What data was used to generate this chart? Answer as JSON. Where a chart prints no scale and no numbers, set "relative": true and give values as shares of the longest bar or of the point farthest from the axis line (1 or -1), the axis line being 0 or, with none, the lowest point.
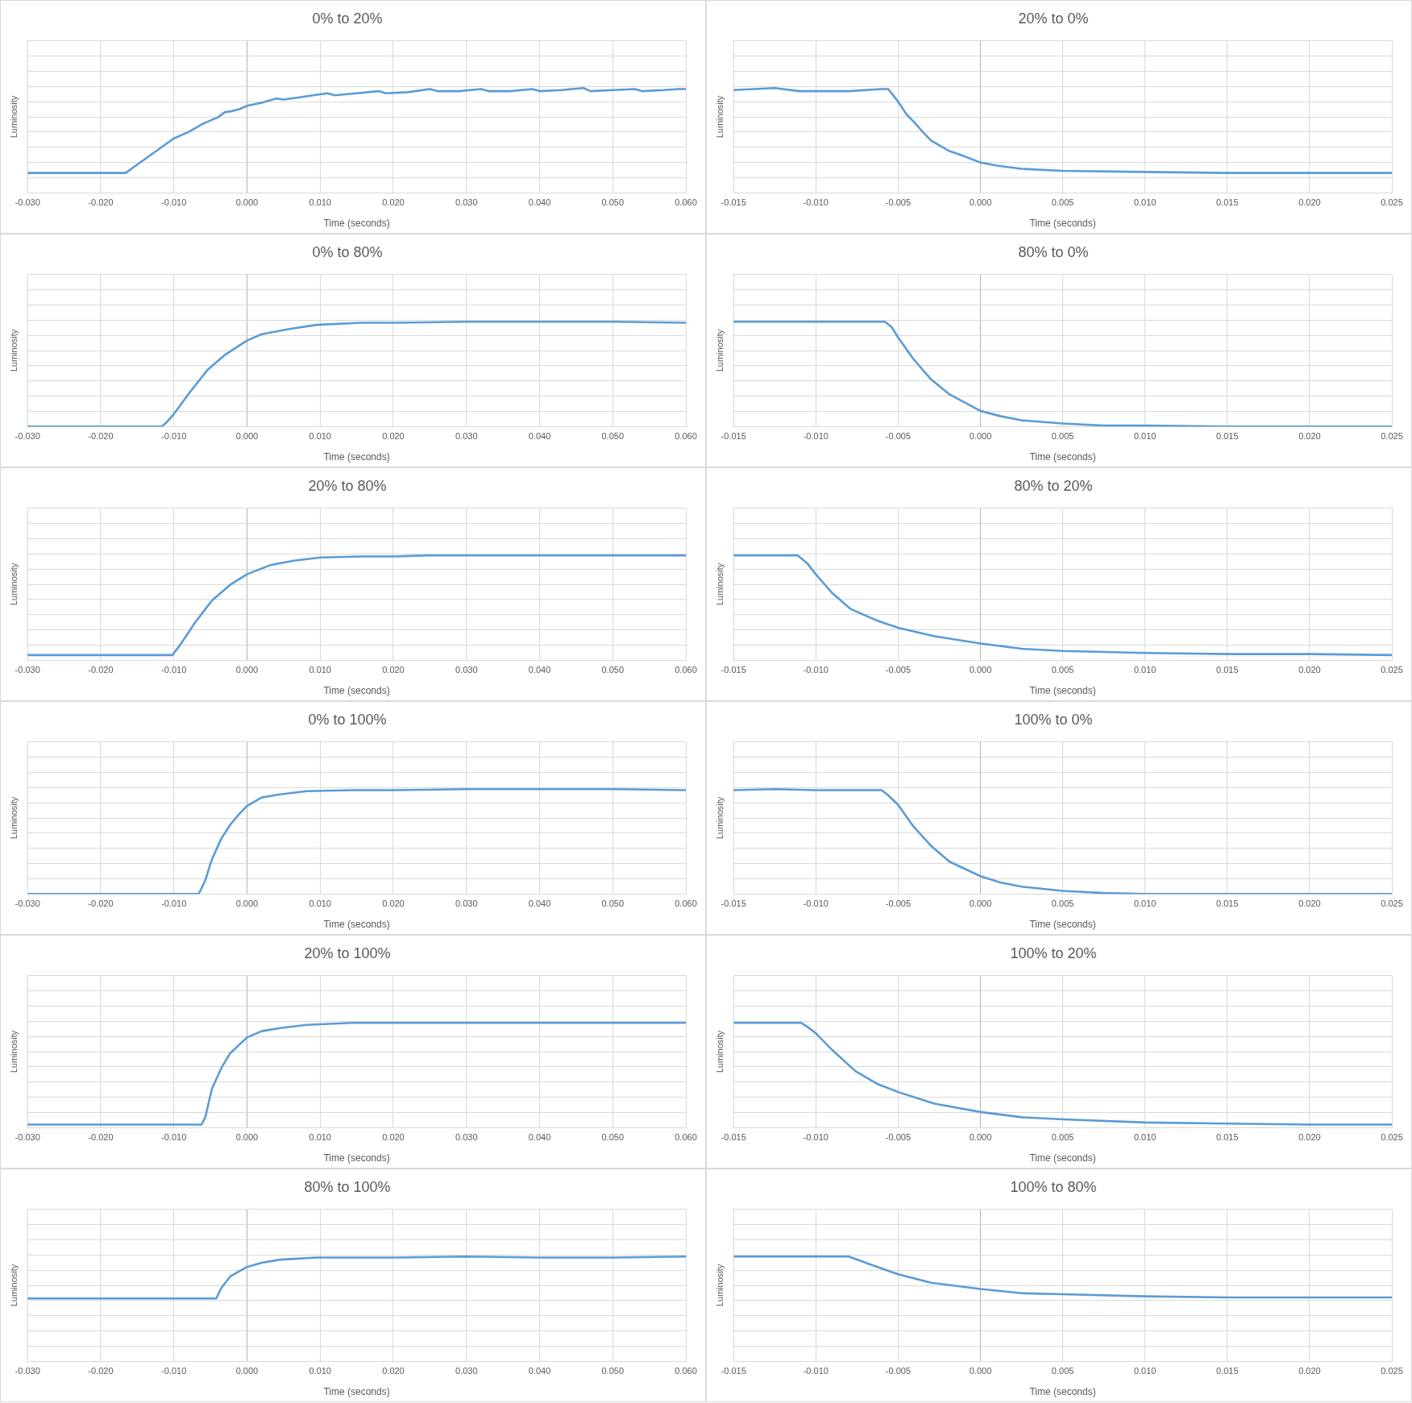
{
  "chart_data": [
    {
      "type": "line",
      "title": "0% to 20%",
      "xlabel": "Time (seconds)",
      "ylabel": "Luminosity",
      "relative": true,
      "grid": true,
      "color": "#5b9bd5",
      "xlim": [
        -0.03,
        0.06
      ],
      "xticks": [
        {
          "value": -0.03,
          "label": "-0.030"
        },
        {
          "value": -0.02,
          "label": "-0.020"
        },
        {
          "value": -0.01,
          "label": "-0.010"
        },
        {
          "value": 0,
          "label": "0.000"
        },
        {
          "value": 0.01,
          "label": "0.010"
        },
        {
          "value": 0.02,
          "label": "0.020"
        },
        {
          "value": 0.03,
          "label": "0.030"
        },
        {
          "value": 0.04,
          "label": "0.040"
        },
        {
          "value": 0.05,
          "label": "0.050"
        },
        {
          "value": 0.06,
          "label": "0.060"
        }
      ],
      "x": [
        -0.03,
        -0.025,
        -0.02,
        -0.0166,
        -0.015,
        -0.013,
        -0.01,
        -0.008,
        -0.006,
        -0.004,
        -0.003,
        -0.002,
        -0.001,
        0,
        0.002,
        0.004,
        0.005,
        0.007,
        0.01,
        0.011,
        0.012,
        0.015,
        0.018,
        0.019,
        0.022,
        0.025,
        0.026,
        0.029,
        0.032,
        0.033,
        0.036,
        0.039,
        0.04,
        0.043,
        0.046,
        0.047,
        0.05,
        0.053,
        0.054,
        0.057,
        0.059,
        0.06
      ],
      "values": [
        0.19,
        0.19,
        0.19,
        0.19,
        0.27,
        0.37,
        0.52,
        0.58,
        0.66,
        0.72,
        0.77,
        0.78,
        0.8,
        0.83,
        0.86,
        0.9,
        0.89,
        0.91,
        0.94,
        0.95,
        0.93,
        0.95,
        0.97,
        0.95,
        0.96,
        0.99,
        0.97,
        0.97,
        0.99,
        0.97,
        0.97,
        0.99,
        0.97,
        0.98,
        1,
        0.97,
        0.98,
        0.99,
        0.97,
        0.98,
        0.99,
        0.99
      ]
    },
    {
      "type": "line",
      "title": "20% to 0%",
      "xlabel": "Time (seconds)",
      "ylabel": "Luminosity",
      "relative": true,
      "grid": true,
      "color": "#5b9bd5",
      "xlim": [
        -0.015,
        0.025
      ],
      "xticks": [
        {
          "value": -0.015,
          "label": "-0.015"
        },
        {
          "value": -0.01,
          "label": "-0.010"
        },
        {
          "value": -0.005,
          "label": "-0.005"
        },
        {
          "value": 0,
          "label": "0.000"
        },
        {
          "value": 0.005,
          "label": "0.005"
        },
        {
          "value": 0.01,
          "label": "0.010"
        },
        {
          "value": 0.015,
          "label": "0.015"
        },
        {
          "value": 0.02,
          "label": "0.020"
        },
        {
          "value": 0.025,
          "label": "0.025"
        }
      ],
      "x": [
        -0.015,
        -0.0125,
        -0.011,
        -0.008,
        -0.006,
        -0.0056,
        -0.005,
        -0.0045,
        -0.004,
        -0.0035,
        -0.003,
        -0.0019,
        -0.001,
        0,
        0.001,
        0.0025,
        0.005,
        0.01,
        0.015,
        0.02,
        0.025
      ],
      "values": [
        0.98,
        1,
        0.97,
        0.97,
        0.99,
        0.99,
        0.87,
        0.75,
        0.67,
        0.58,
        0.5,
        0.4,
        0.35,
        0.29,
        0.26,
        0.23,
        0.21,
        0.2,
        0.19,
        0.19,
        0.19
      ]
    },
    {
      "type": "line",
      "title": "0% to 80%",
      "xlabel": "Time (seconds)",
      "ylabel": "Luminosity",
      "relative": true,
      "grid": true,
      "color": "#5b9bd5",
      "xlim": [
        -0.03,
        0.06
      ],
      "xticks": [
        {
          "value": -0.03,
          "label": "-0.030"
        },
        {
          "value": -0.02,
          "label": "-0.020"
        },
        {
          "value": -0.01,
          "label": "-0.010"
        },
        {
          "value": 0,
          "label": "0.000"
        },
        {
          "value": 0.01,
          "label": "0.010"
        },
        {
          "value": 0.02,
          "label": "0.020"
        },
        {
          "value": 0.03,
          "label": "0.030"
        },
        {
          "value": 0.04,
          "label": "0.040"
        },
        {
          "value": 0.05,
          "label": "0.050"
        },
        {
          "value": 0.06,
          "label": "0.060"
        }
      ],
      "x": [
        -0.03,
        -0.02,
        -0.0117,
        -0.011,
        -0.01,
        -0.0079,
        -0.0054,
        -0.0029,
        0,
        0.002,
        0.0058,
        0.0095,
        0.0156,
        0.02,
        0.03,
        0.04,
        0.05,
        0.06
      ],
      "values": [
        0,
        0,
        0,
        0.04,
        0.12,
        0.32,
        0.54,
        0.69,
        0.82,
        0.88,
        0.93,
        0.97,
        0.99,
        0.99,
        1,
        1,
        1,
        0.99
      ]
    },
    {
      "type": "line",
      "title": "80% to 0%",
      "xlabel": "Time (seconds)",
      "ylabel": "Luminosity",
      "relative": true,
      "grid": true,
      "color": "#5b9bd5",
      "xlim": [
        -0.015,
        0.025
      ],
      "xticks": [
        {
          "value": -0.015,
          "label": "-0.015"
        },
        {
          "value": -0.01,
          "label": "-0.010"
        },
        {
          "value": -0.005,
          "label": "-0.005"
        },
        {
          "value": 0,
          "label": "0.000"
        },
        {
          "value": 0.005,
          "label": "0.005"
        },
        {
          "value": 0.01,
          "label": "0.010"
        },
        {
          "value": 0.015,
          "label": "0.015"
        },
        {
          "value": 0.02,
          "label": "0.020"
        },
        {
          "value": 0.025,
          "label": "0.025"
        }
      ],
      "x": [
        -0.015,
        -0.01,
        -0.0058,
        -0.0054,
        -0.005,
        -0.0041,
        -0.003,
        -0.0019,
        0,
        0.0012,
        0.0025,
        0.005,
        0.0075,
        0.01,
        0.015,
        0.02,
        0.025
      ],
      "values": [
        1,
        1,
        1,
        0.95,
        0.85,
        0.65,
        0.45,
        0.31,
        0.15,
        0.1,
        0.06,
        0.03,
        0.01,
        0.01,
        0,
        0,
        0
      ]
    },
    {
      "type": "line",
      "title": "20% to 80%",
      "xlabel": "Time (seconds)",
      "ylabel": "Luminosity",
      "relative": true,
      "grid": true,
      "color": "#5b9bd5",
      "xlim": [
        -0.03,
        0.06
      ],
      "xticks": [
        {
          "value": -0.03,
          "label": "-0.030"
        },
        {
          "value": -0.02,
          "label": "-0.020"
        },
        {
          "value": -0.01,
          "label": "-0.010"
        },
        {
          "value": 0,
          "label": "0.000"
        },
        {
          "value": 0.01,
          "label": "0.010"
        },
        {
          "value": 0.02,
          "label": "0.020"
        },
        {
          "value": 0.03,
          "label": "0.030"
        },
        {
          "value": 0.04,
          "label": "0.040"
        },
        {
          "value": 0.05,
          "label": "0.050"
        },
        {
          "value": 0.06,
          "label": "0.060"
        }
      ],
      "x": [
        -0.03,
        -0.02,
        -0.0102,
        -0.0091,
        -0.0072,
        -0.0048,
        -0.0023,
        0,
        0.0033,
        0.0064,
        0.0101,
        0.0156,
        0.02,
        0.025,
        0.03,
        0.04,
        0.05,
        0.06
      ],
      "values": [
        0.05,
        0.05,
        0.05,
        0.15,
        0.35,
        0.57,
        0.72,
        0.82,
        0.91,
        0.95,
        0.98,
        0.99,
        0.99,
        1,
        1,
        1,
        1,
        1
      ]
    },
    {
      "type": "line",
      "title": "80% to 20%",
      "xlabel": "Time (seconds)",
      "ylabel": "Luminosity",
      "relative": true,
      "grid": true,
      "color": "#5b9bd5",
      "xlim": [
        -0.015,
        0.025
      ],
      "xticks": [
        {
          "value": -0.015,
          "label": "-0.015"
        },
        {
          "value": -0.01,
          "label": "-0.010"
        },
        {
          "value": -0.005,
          "label": "-0.005"
        },
        {
          "value": 0,
          "label": "0.000"
        },
        {
          "value": 0.005,
          "label": "0.005"
        },
        {
          "value": 0.01,
          "label": "0.010"
        },
        {
          "value": 0.015,
          "label": "0.015"
        },
        {
          "value": 0.02,
          "label": "0.020"
        },
        {
          "value": 0.025,
          "label": "0.025"
        }
      ],
      "x": [
        -0.015,
        -0.0111,
        -0.0105,
        -0.01,
        -0.009,
        -0.0079,
        -0.0063,
        -0.005,
        -0.0028,
        0,
        0.0025,
        0.005,
        0.01,
        0.015,
        0.02,
        0.025
      ],
      "values": [
        1,
        1,
        0.92,
        0.82,
        0.64,
        0.49,
        0.38,
        0.31,
        0.23,
        0.16,
        0.11,
        0.09,
        0.07,
        0.06,
        0.06,
        0.05
      ]
    },
    {
      "type": "line",
      "title": "0% to 100%",
      "xlabel": "Time (seconds)",
      "ylabel": "Luminosity",
      "relative": true,
      "grid": true,
      "color": "#5b9bd5",
      "xlim": [
        -0.03,
        0.06
      ],
      "xticks": [
        {
          "value": -0.03,
          "label": "-0.030"
        },
        {
          "value": -0.02,
          "label": "-0.020"
        },
        {
          "value": -0.01,
          "label": "-0.010"
        },
        {
          "value": 0,
          "label": "0.000"
        },
        {
          "value": 0.01,
          "label": "0.010"
        },
        {
          "value": 0.02,
          "label": "0.020"
        },
        {
          "value": 0.03,
          "label": "0.030"
        },
        {
          "value": 0.04,
          "label": "0.040"
        },
        {
          "value": 0.05,
          "label": "0.050"
        },
        {
          "value": 0.06,
          "label": "0.060"
        }
      ],
      "x": [
        -0.03,
        -0.02,
        -0.0066,
        -0.0057,
        -0.0048,
        -0.0035,
        -0.0023,
        -0.0011,
        0,
        0.002,
        0.0045,
        0.0082,
        0.0144,
        0.02,
        0.03,
        0.04,
        0.05,
        0.06
      ],
      "values": [
        0,
        0,
        0,
        0.13,
        0.33,
        0.53,
        0.66,
        0.76,
        0.84,
        0.92,
        0.95,
        0.98,
        0.99,
        0.99,
        1,
        1,
        1,
        0.99
      ]
    },
    {
      "type": "line",
      "title": "100% to 0%",
      "xlabel": "Time (seconds)",
      "ylabel": "Luminosity",
      "relative": true,
      "grid": true,
      "color": "#5b9bd5",
      "xlim": [
        -0.015,
        0.025
      ],
      "xticks": [
        {
          "value": -0.015,
          "label": "-0.015"
        },
        {
          "value": -0.01,
          "label": "-0.010"
        },
        {
          "value": -0.005,
          "label": "-0.005"
        },
        {
          "value": 0,
          "label": "0.000"
        },
        {
          "value": 0.005,
          "label": "0.005"
        },
        {
          "value": 0.01,
          "label": "0.010"
        },
        {
          "value": 0.015,
          "label": "0.015"
        },
        {
          "value": 0.02,
          "label": "0.020"
        },
        {
          "value": 0.025,
          "label": "0.025"
        }
      ],
      "x": [
        -0.015,
        -0.0125,
        -0.01,
        -0.006,
        -0.0056,
        -0.005,
        -0.0041,
        -0.003,
        -0.0019,
        0,
        0.0012,
        0.0025,
        0.005,
        0.0075,
        0.01,
        0.015,
        0.02,
        0.025
      ],
      "values": [
        0.99,
        1,
        0.99,
        0.99,
        0.94,
        0.85,
        0.65,
        0.46,
        0.31,
        0.17,
        0.11,
        0.07,
        0.03,
        0.01,
        0,
        0,
        0,
        0
      ]
    },
    {
      "type": "line",
      "title": "20% to 100%",
      "xlabel": "Time (seconds)",
      "ylabel": "Luminosity",
      "relative": true,
      "grid": true,
      "color": "#5b9bd5",
      "xlim": [
        -0.03,
        0.06
      ],
      "xticks": [
        {
          "value": -0.03,
          "label": "-0.030"
        },
        {
          "value": -0.02,
          "label": "-0.020"
        },
        {
          "value": -0.01,
          "label": "-0.010"
        },
        {
          "value": 0,
          "label": "0.000"
        },
        {
          "value": 0.01,
          "label": "0.010"
        },
        {
          "value": 0.02,
          "label": "0.020"
        },
        {
          "value": 0.03,
          "label": "0.030"
        },
        {
          "value": 0.04,
          "label": "0.040"
        },
        {
          "value": 0.05,
          "label": "0.050"
        },
        {
          "value": 0.06,
          "label": "0.060"
        }
      ],
      "x": [
        -0.03,
        -0.02,
        -0.0062,
        -0.0057,
        -0.0048,
        -0.0035,
        -0.0023,
        0,
        0.002,
        0.0045,
        0.0082,
        0.0144,
        0.02,
        0.03,
        0.04,
        0.05,
        0.06
      ],
      "values": [
        0.03,
        0.03,
        0.03,
        0.1,
        0.37,
        0.57,
        0.71,
        0.86,
        0.92,
        0.95,
        0.98,
        1,
        1,
        1,
        1,
        1,
        1
      ]
    },
    {
      "type": "line",
      "title": "100% to 20%",
      "xlabel": "Time (seconds)",
      "ylabel": "Luminosity",
      "relative": true,
      "grid": true,
      "color": "#5b9bd5",
      "xlim": [
        -0.015,
        0.025
      ],
      "xticks": [
        {
          "value": -0.015,
          "label": "-0.015"
        },
        {
          "value": -0.01,
          "label": "-0.010"
        },
        {
          "value": -0.005,
          "label": "-0.005"
        },
        {
          "value": 0,
          "label": "0.000"
        },
        {
          "value": 0.005,
          "label": "0.005"
        },
        {
          "value": 0.01,
          "label": "0.010"
        },
        {
          "value": 0.015,
          "label": "0.015"
        },
        {
          "value": 0.02,
          "label": "0.020"
        },
        {
          "value": 0.025,
          "label": "0.025"
        }
      ],
      "x": [
        -0.015,
        -0.0109,
        -0.0105,
        -0.01,
        -0.009,
        -0.0076,
        -0.0063,
        -0.005,
        -0.0028,
        0,
        0.0025,
        0.005,
        0.01,
        0.015,
        0.02,
        0.025
      ],
      "values": [
        1,
        1,
        0.96,
        0.9,
        0.74,
        0.54,
        0.42,
        0.34,
        0.23,
        0.15,
        0.1,
        0.08,
        0.05,
        0.04,
        0.03,
        0.03
      ]
    },
    {
      "type": "line",
      "title": "80% to 100%",
      "xlabel": "Time (seconds)",
      "ylabel": "Luminosity",
      "relative": true,
      "grid": true,
      "color": "#5b9bd5",
      "xlim": [
        -0.03,
        0.06
      ],
      "xticks": [
        {
          "value": -0.03,
          "label": "-0.030"
        },
        {
          "value": -0.02,
          "label": "-0.020"
        },
        {
          "value": -0.01,
          "label": "-0.010"
        },
        {
          "value": 0,
          "label": "0.000"
        },
        {
          "value": 0.01,
          "label": "0.010"
        },
        {
          "value": 0.02,
          "label": "0.020"
        },
        {
          "value": 0.03,
          "label": "0.030"
        },
        {
          "value": 0.04,
          "label": "0.040"
        },
        {
          "value": 0.05,
          "label": "0.050"
        },
        {
          "value": 0.06,
          "label": "0.060"
        }
      ],
      "x": [
        -0.03,
        -0.02,
        -0.01,
        -0.0042,
        -0.0035,
        -0.0023,
        0,
        0.002,
        0.0045,
        0.0095,
        0.02,
        0.03,
        0.04,
        0.05,
        0.06
      ],
      "values": [
        0.6,
        0.6,
        0.6,
        0.6,
        0.7,
        0.81,
        0.9,
        0.94,
        0.97,
        0.99,
        0.99,
        1,
        0.99,
        0.99,
        1
      ]
    },
    {
      "type": "line",
      "title": "100% to 80%",
      "xlabel": "Time (seconds)",
      "ylabel": "Luminosity",
      "relative": true,
      "grid": true,
      "color": "#5b9bd5",
      "xlim": [
        -0.015,
        0.025
      ],
      "xticks": [
        {
          "value": -0.015,
          "label": "-0.015"
        },
        {
          "value": -0.01,
          "label": "-0.010"
        },
        {
          "value": -0.005,
          "label": "-0.005"
        },
        {
          "value": 0,
          "label": "0.000"
        },
        {
          "value": 0.005,
          "label": "0.005"
        },
        {
          "value": 0.01,
          "label": "0.010"
        },
        {
          "value": 0.015,
          "label": "0.015"
        },
        {
          "value": 0.02,
          "label": "0.020"
        },
        {
          "value": 0.025,
          "label": "0.025"
        }
      ],
      "x": [
        -0.015,
        -0.01,
        -0.008,
        -0.0068,
        -0.005,
        -0.003,
        0,
        0.0025,
        0.005,
        0.01,
        0.015,
        0.02,
        0.025
      ],
      "values": [
        1,
        1,
        1,
        0.93,
        0.83,
        0.75,
        0.69,
        0.65,
        0.64,
        0.62,
        0.61,
        0.61,
        0.61
      ]
    }
  ]
}
